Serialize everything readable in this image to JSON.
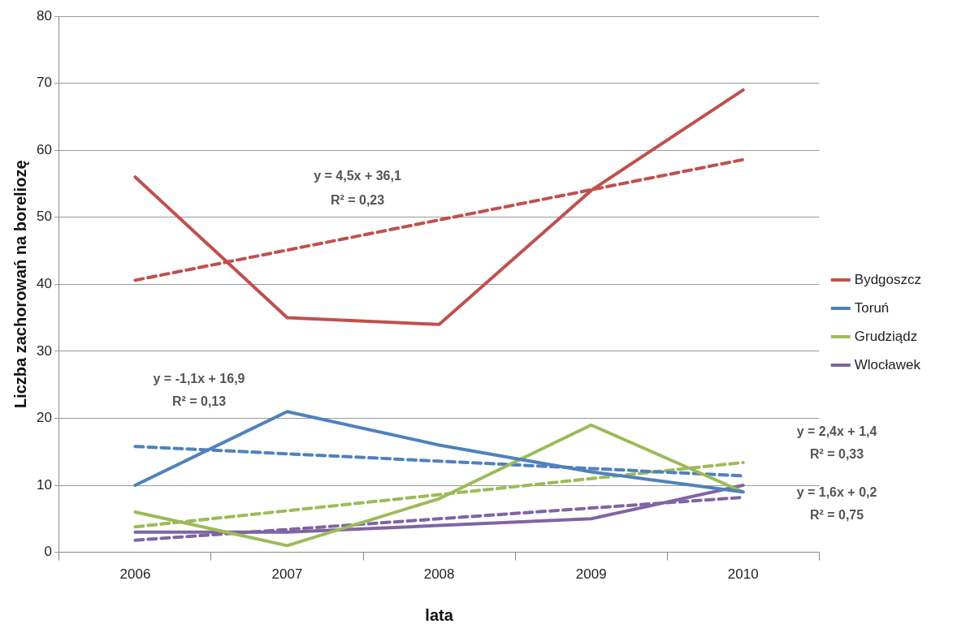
{
  "chart_data": {
    "type": "line",
    "xlabel": "lata",
    "ylabel": "Liczba zachorowań na boreliozę",
    "categories": [
      "2006",
      "2007",
      "2008",
      "2009",
      "2010"
    ],
    "ylim": [
      0,
      80
    ],
    "yticks": [
      0,
      10,
      20,
      30,
      40,
      50,
      60,
      70,
      80
    ],
    "grid": "y",
    "legend": "right",
    "marker": "none",
    "series": [
      {
        "name": "Bydgoszcz",
        "color": "#c0504d",
        "values": [
          56,
          35,
          34,
          54,
          69
        ]
      },
      {
        "name": "Toruń",
        "color": "#4f81bd",
        "values": [
          10,
          21,
          16,
          12,
          9
        ]
      },
      {
        "name": "Grudziądz",
        "color": "#9bbb59",
        "values": [
          6,
          1,
          8,
          19,
          9
        ]
      },
      {
        "name": "Wlocławek",
        "color": "#8064a2",
        "values": [
          3,
          3,
          4,
          5,
          10
        ]
      },
      {
        "type": "line",
        "color": "#c0504d",
        "line_style": "dashed",
        "values": [
          40.6,
          45.1,
          49.6,
          54.1,
          58.6
        ]
      },
      {
        "type": "line",
        "color": "#4f81bd",
        "line_style": "dashed",
        "values": [
          15.8,
          14.7,
          13.6,
          12.5,
          11.4
        ]
      },
      {
        "type": "line",
        "color": "#9bbb59",
        "line_style": "dashed",
        "values": [
          3.8,
          6.2,
          8.6,
          11,
          13.4
        ]
      },
      {
        "type": "line",
        "color": "#8064a2",
        "line_style": "dashed",
        "values": [
          1.8,
          3.4,
          5,
          6.6,
          8.2
        ]
      }
    ],
    "annotations": [
      "y = 4,5x + 36,1",
      "R² = 0,23",
      "y = -1,1x + 16,9",
      "R² = 0,13",
      "y = 2,4x + 1,4",
      "R² = 0,33",
      "y = 1,6x + 0,2",
      "R² = 0,75"
    ]
  }
}
